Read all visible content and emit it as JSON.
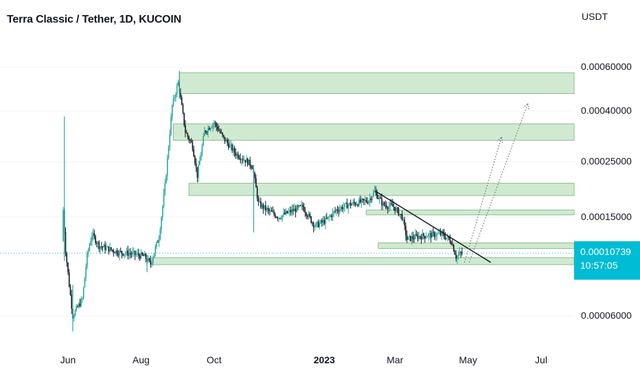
{
  "header": {
    "title": "Terra Classic / Tether, 1D, KUCOIN",
    "currency": "USDT"
  },
  "price_badge": {
    "price": "0.00010739",
    "countdown": "10:57:05",
    "color": "#00bcd4"
  },
  "colors": {
    "candle": "#26a69a",
    "candle_dark": "#131722",
    "zone_fill": "#c8e6c9",
    "zone_border": "#8fb98f",
    "trendline": "#131722",
    "projection": "#555555",
    "grid": "#f0f3fa"
  },
  "chart_data": {
    "type": "candlestick",
    "title": "Terra Classic / Tether, 1D, KUCOIN",
    "y_axis": {
      "unit": "USDT",
      "scale": "log",
      "ticks": [
        "0.00060000",
        "0.00040000",
        "0.00025000",
        "0.00015000",
        "0.00006000"
      ],
      "tick_values": [
        0.0006,
        0.0004,
        0.00025,
        0.00015,
        6e-05
      ]
    },
    "x_axis": {
      "ticks": [
        "Jun",
        "Aug",
        "Oct",
        "2023",
        "Mar",
        "May",
        "Jul"
      ],
      "tick_dates": [
        "2022-06-01",
        "2022-08-01",
        "2022-10-01",
        "2023-01-01",
        "2023-03-01",
        "2023-05-01",
        "2023-07-01"
      ],
      "bold_ticks": [
        "2023"
      ]
    },
    "current_price": 0.00010739,
    "price_path": [
      [
        "2022-05-28",
        0.00012
      ],
      [
        "2022-05-29",
        0.00016
      ],
      [
        "2022-05-31",
        0.00011
      ],
      [
        "2022-06-03",
        8e-05
      ],
      [
        "2022-06-06",
        6e-05
      ],
      [
        "2022-06-10",
        6.5e-05
      ],
      [
        "2022-06-14",
        7e-05
      ],
      [
        "2022-06-18",
        0.000105
      ],
      [
        "2022-06-22",
        0.000128
      ],
      [
        "2022-06-28",
        0.000115
      ],
      [
        "2022-07-05",
        0.000112
      ],
      [
        "2022-07-15",
        0.000108
      ],
      [
        "2022-07-25",
        0.000107
      ],
      [
        "2022-08-05",
        0.000104
      ],
      [
        "2022-08-10",
        9.7e-05
      ],
      [
        "2022-08-17",
        0.000125
      ],
      [
        "2022-08-22",
        0.0002
      ],
      [
        "2022-08-28",
        0.00042
      ],
      [
        "2022-09-02",
        0.00052
      ],
      [
        "2022-09-08",
        0.00033
      ],
      [
        "2022-09-14",
        0.00029
      ],
      [
        "2022-09-18",
        0.00022
      ],
      [
        "2022-09-24",
        0.00033
      ],
      [
        "2022-10-02",
        0.00036
      ],
      [
        "2022-10-10",
        0.00031
      ],
      [
        "2022-10-20",
        0.00027
      ],
      [
        "2022-10-30",
        0.00025
      ],
      [
        "2022-11-03",
        0.00024
      ],
      [
        "2022-11-08",
        0.00017
      ],
      [
        "2022-11-15",
        0.00016
      ],
      [
        "2022-11-25",
        0.00015
      ],
      [
        "2022-12-05",
        0.000158
      ],
      [
        "2022-12-15",
        0.000165
      ],
      [
        "2022-12-25",
        0.000138
      ],
      [
        "2023-01-03",
        0.000145
      ],
      [
        "2023-01-12",
        0.00016
      ],
      [
        "2023-01-22",
        0.000168
      ],
      [
        "2023-02-01",
        0.000172
      ],
      [
        "2023-02-08",
        0.000175
      ],
      [
        "2023-02-13",
        0.00019
      ],
      [
        "2023-02-20",
        0.000168
      ],
      [
        "2023-03-01",
        0.000165
      ],
      [
        "2023-03-08",
        0.00015
      ],
      [
        "2023-03-12",
        0.000122
      ],
      [
        "2023-03-20",
        0.000125
      ],
      [
        "2023-04-01",
        0.000127
      ],
      [
        "2023-04-10",
        0.000128
      ],
      [
        "2023-04-18",
        0.00012
      ],
      [
        "2023-04-22",
        0.000104
      ],
      [
        "2023-04-26",
        0.000107
      ]
    ],
    "spikes": [
      {
        "date": "2022-05-29",
        "high": 0.00038,
        "low": 0.0001
      },
      {
        "date": "2022-06-05",
        "high": 8e-05,
        "low": 5.2e-05
      },
      {
        "date": "2022-09-02",
        "high": 0.00058,
        "low": 0.00045
      },
      {
        "date": "2022-11-03",
        "high": 0.00024,
        "low": 0.00013
      },
      {
        "date": "2022-08-06",
        "high": 0.000105,
        "low": 9e-05
      }
    ],
    "zones": [
      {
        "from": "2022-08-10",
        "to": "2023-07-30",
        "low": 9.65e-05,
        "high": 0.000103
      },
      {
        "from": "2023-02-15",
        "to": "2023-07-30",
        "low": 0.000112,
        "high": 0.000118
      },
      {
        "from": "2023-02-05",
        "to": "2023-07-30",
        "low": 0.000153,
        "high": 0.00016
      },
      {
        "from": "2022-09-10",
        "to": "2023-07-30",
        "low": 0.000183,
        "high": 0.000205
      },
      {
        "from": "2022-08-28",
        "to": "2023-07-30",
        "low": 0.000305,
        "high": 0.000355
      },
      {
        "from": "2022-09-02",
        "to": "2023-07-30",
        "low": 0.00047,
        "high": 0.00057
      }
    ],
    "trendline": {
      "from": [
        "2023-02-13",
        0.00019
      ],
      "to": [
        "2023-05-20",
        9.85e-05
      ]
    },
    "projections": [
      {
        "from": [
          "2023-04-28",
          9.85e-05
        ],
        "to": [
          "2023-05-29",
          0.000315
        ]
      },
      {
        "from": [
          "2023-05-02",
          9.85e-05
        ],
        "to": [
          "2023-06-20",
          0.00043
        ]
      }
    ]
  }
}
